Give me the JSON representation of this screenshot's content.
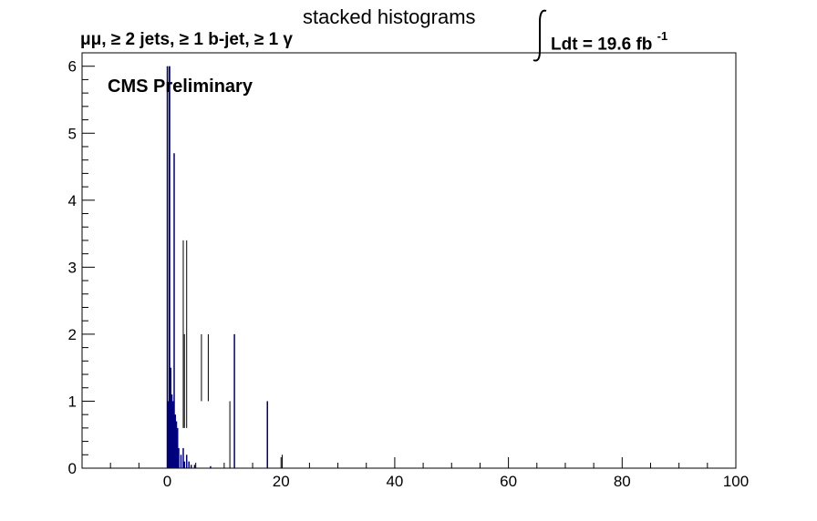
{
  "header": {
    "title": "stacked histograms",
    "selection": "μμ, ≥ 2 jets, ≥ 1 b-jet, ≥ 1 γ",
    "lumi_label": "Ldt = 19.6 fb",
    "lumi_exp": "-1",
    "cms_label": "CMS Preliminary"
  },
  "chart_data": {
    "type": "bar",
    "title": "stacked histograms",
    "xlabel": "",
    "ylabel": "",
    "xlim": [
      -15,
      100
    ],
    "ylim": [
      0,
      6.2
    ],
    "x_ticks": [
      0,
      20,
      40,
      60,
      80,
      100
    ],
    "y_ticks": [
      0,
      1,
      2,
      3,
      4,
      5,
      6
    ],
    "grid": false,
    "legend": "none",
    "color": "#00007f",
    "bins": [
      {
        "x": 0.0,
        "value": 6.0
      },
      {
        "x": 0.2,
        "value": 1.0
      },
      {
        "x": 0.4,
        "value": 6.0
      },
      {
        "x": 0.6,
        "value": 1.5
      },
      {
        "x": 0.8,
        "value": 1.1
      },
      {
        "x": 1.0,
        "value": 1.0
      },
      {
        "x": 1.2,
        "value": 4.7
      },
      {
        "x": 1.4,
        "value": 0.8
      },
      {
        "x": 1.6,
        "value": 0.7
      },
      {
        "x": 1.8,
        "value": 0.6
      },
      {
        "x": 2.0,
        "value": 0.3
      },
      {
        "x": 2.4,
        "value": 0.2
      },
      {
        "x": 2.8,
        "value": 0.3
      },
      {
        "x": 3.0,
        "value": 0.1
      },
      {
        "x": 3.4,
        "value": 0.2
      },
      {
        "x": 3.8,
        "value": 0.1
      },
      {
        "x": 4.2,
        "value": 0.05
      },
      {
        "x": 4.8,
        "value": 0.05
      },
      {
        "x": 7.6,
        "value": 0.03
      },
      {
        "x": 11.8,
        "value": 2.0
      },
      {
        "x": 17.6,
        "value": 1.0
      }
    ],
    "error_bars": [
      {
        "x": 0.3,
        "low": 0,
        "high": 6.0
      },
      {
        "x": 1.2,
        "low": 0,
        "high": 4.7
      },
      {
        "x": 2.8,
        "low": 0.6,
        "high": 3.4
      },
      {
        "x": 3.4,
        "low": 0.6,
        "high": 3.4
      },
      {
        "x": 3.0,
        "low": 0.6,
        "high": 2.0
      },
      {
        "x": 6.0,
        "low": 1.0,
        "high": 2.0
      },
      {
        "x": 7.2,
        "low": 1.0,
        "high": 2.0
      },
      {
        "x": 11.0,
        "low": 0,
        "high": 1.0
      },
      {
        "x": 20.2,
        "low": 0,
        "high": 0.2
      }
    ]
  }
}
